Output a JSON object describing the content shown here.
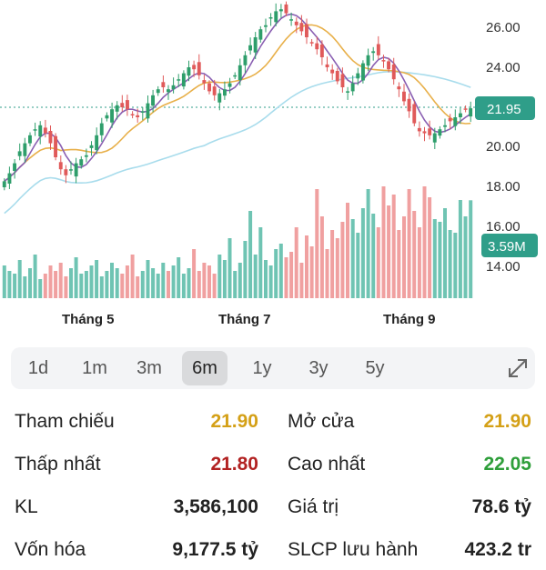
{
  "chart_data": {
    "type": "candlestick",
    "y_ticks": [
      "26.00",
      "24.00",
      "21.95",
      "20.00",
      "18.00",
      "16.00",
      "14.00"
    ],
    "x_ticks": [
      "Tháng 5",
      "Tháng 7",
      "Tháng 9"
    ],
    "current_price_label": "21.95",
    "volume_label": "3.59M",
    "colors": {
      "up": "#2e9e6b",
      "down": "#e05a5a",
      "vol_up": "#6fc4b3",
      "vol_down": "#f0a0a0",
      "ma_short": "#8a5fb2",
      "ma_mid": "#e8b04a",
      "ma_long": "#a8dcec",
      "badge": "#2f9e89"
    },
    "close_approx": [
      18.3,
      18.7,
      19.2,
      19.8,
      20.2,
      20.6,
      20.9,
      21.1,
      20.7,
      20.2,
      19.5,
      18.9,
      18.6,
      18.9,
      19.2,
      19.4,
      19.6,
      20.1,
      20.6,
      21.2,
      21.6,
      21.9,
      22.1,
      22.0,
      21.9,
      21.6,
      21.5,
      21.8,
      22.2,
      22.6,
      22.9,
      23.0,
      22.9,
      23.1,
      23.4,
      23.7,
      24.0,
      23.9,
      23.6,
      23.2,
      22.8,
      22.6,
      22.7,
      22.9,
      23.2,
      23.6,
      24.1,
      24.6,
      25.1,
      25.5,
      25.9,
      26.1,
      26.5,
      26.8,
      26.9,
      26.7,
      26.4,
      26.1,
      25.8,
      25.5,
      25.2,
      24.9,
      24.5,
      24.0,
      23.7,
      23.3,
      23.0,
      22.8,
      23.2,
      23.7,
      24.2,
      24.6,
      24.8,
      24.6,
      24.3,
      23.9,
      23.4,
      22.9,
      22.3,
      21.8,
      21.2,
      20.8,
      20.7,
      20.6,
      20.7,
      20.9,
      21.1,
      21.3,
      21.5,
      21.7,
      21.9,
      21.95
    ],
    "volume_approx": [
      1.2,
      1.0,
      0.9,
      1.4,
      0.8,
      1.1,
      1.6,
      0.7,
      0.9,
      1.2,
      1.0,
      1.3,
      0.8,
      1.1,
      1.5,
      0.9,
      1.0,
      1.2,
      1.4,
      0.8,
      1.0,
      1.3,
      1.1,
      0.9,
      1.2,
      1.6,
      0.8,
      1.0,
      1.4,
      1.1,
      0.9,
      1.3,
      1.0,
      1.2,
      1.5,
      0.9,
      1.1,
      1.8,
      1.0,
      1.3,
      1.2,
      0.9,
      1.6,
      1.4,
      2.2,
      1.0,
      1.3,
      2.1,
      3.2,
      1.6,
      2.6,
      1.4,
      1.2,
      1.8,
      2.0,
      1.5,
      1.7,
      2.6,
      1.3,
      2.3,
      1.9,
      4.0,
      3.0,
      1.8,
      2.5,
      2.2,
      2.8,
      3.5,
      2.9,
      2.4,
      3.3,
      4.0,
      3.1,
      2.6,
      4.1,
      3.4,
      3.8,
      2.5,
      3.0,
      4.0,
      3.2,
      2.6,
      4.1,
      3.7,
      2.9,
      2.8,
      3.3,
      2.5,
      2.4,
      3.6,
      3.0,
      3.59
    ]
  },
  "range": {
    "buttons": [
      "1d",
      "1m",
      "3m",
      "6m",
      "1y",
      "3y",
      "5y"
    ],
    "active": "6m"
  },
  "stats": {
    "tham_chieu": {
      "label": "Tham chiếu",
      "value": "21.90",
      "color": "#d4a017"
    },
    "mo_cua": {
      "label": "Mở cửa",
      "value": "21.90",
      "color": "#d4a017"
    },
    "thap_nhat": {
      "label": "Thấp nhất",
      "value": "21.80",
      "color": "#b22222"
    },
    "cao_nhat": {
      "label": "Cao nhất",
      "value": "22.05",
      "color": "#2e9e3a"
    },
    "kl": {
      "label": "KL",
      "value": "3,586,100",
      "color": "#222222"
    },
    "gia_tri": {
      "label": "Giá trị",
      "value": "78.6 tỷ",
      "color": "#222222"
    },
    "von_hoa": {
      "label": "Vốn hóa",
      "value": "9,177.5 tỷ",
      "color": "#222222"
    },
    "sl_cp": {
      "label": "SLCP lưu hành",
      "value": "423.2 tr",
      "color": "#222222"
    }
  }
}
